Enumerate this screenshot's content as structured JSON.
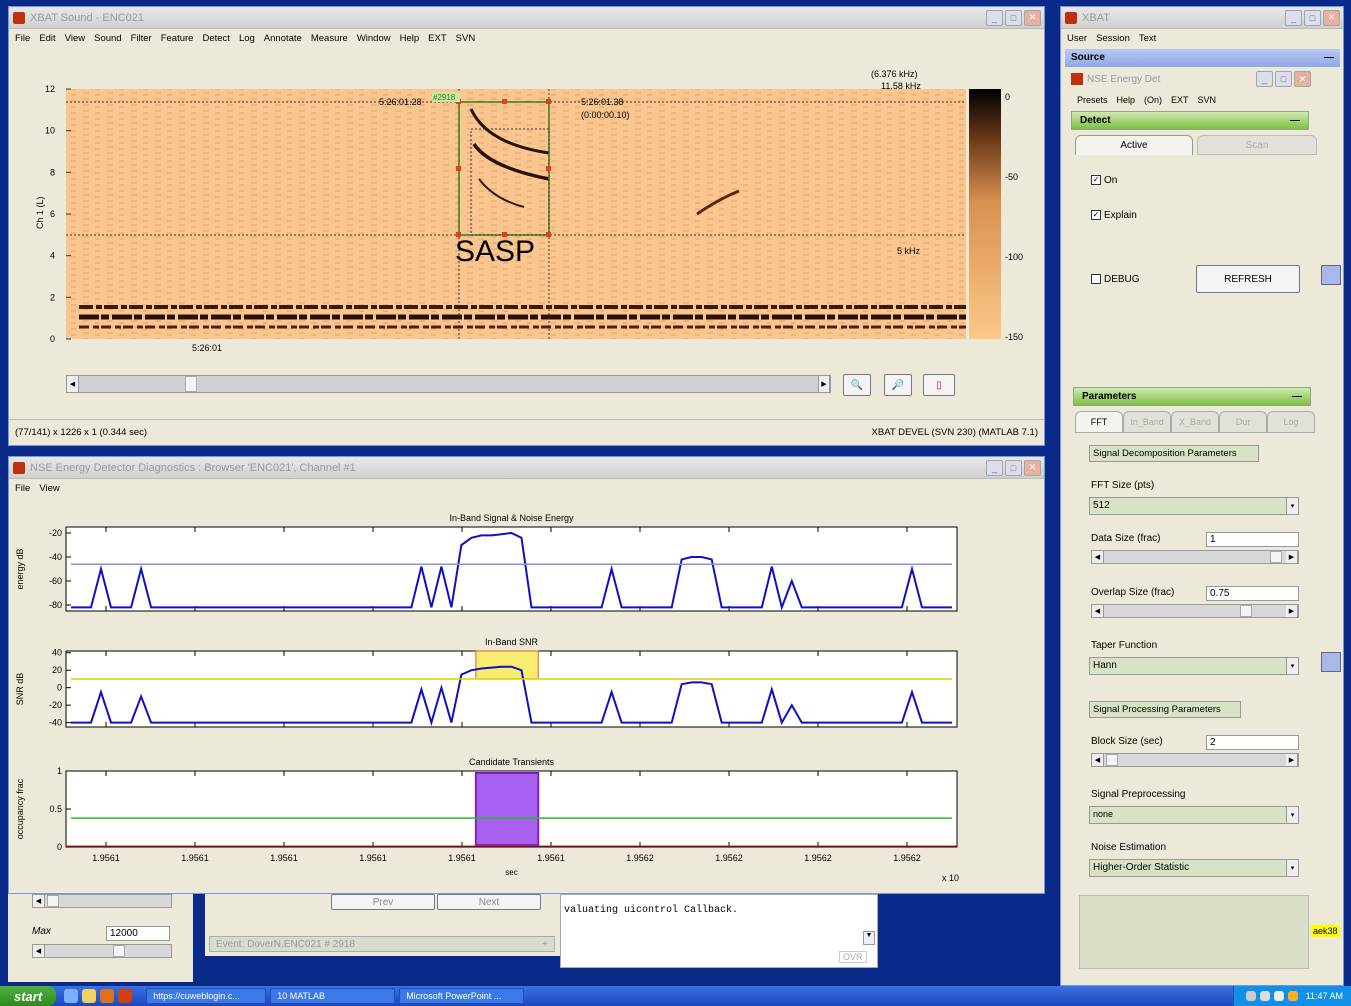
{
  "sound_window": {
    "title": "XBAT Sound  -  ENC021",
    "menu": [
      "File",
      "Edit",
      "View",
      "Sound",
      "Filter",
      "Feature",
      "Detect",
      "Log",
      "Annotate",
      "Measure",
      "Window",
      "Help",
      "EXT",
      "SVN"
    ],
    "freq_readout_top": "(6.376 kHz)",
    "freq_readout_line2": "11.58 kHz",
    "event_id": "#2918",
    "time_start": "5:26:01.28",
    "time_end": "5:26:01.38",
    "duration": "(0:00:00.10)",
    "freq_low": "5 kHz",
    "annotation": "SASP",
    "time_axis_label": "5:26:01",
    "channel_label": "Ch 1 (L)",
    "y_ticks": [
      "12",
      "10",
      "8",
      "6",
      "4",
      "2",
      "0"
    ],
    "colorbar_ticks": [
      "0",
      "-50",
      "-100",
      "-150"
    ],
    "status_left": "(77/141) x 1226 x 1  (0.344 sec)",
    "status_right": "XBAT DEVEL  (SVN 230)  (MATLAB 7.1)"
  },
  "diag_window": {
    "title": "NSE Energy Detector Diagnostics : Browser 'ENC021', Channel #1",
    "menu": [
      "File",
      "View"
    ]
  },
  "chart_data": [
    {
      "type": "line",
      "title": "In-Band Signal & Noise Energy",
      "xlabel": "sec",
      "ylabel": "energy dB",
      "ylim": [
        -85,
        -15
      ],
      "y_ticks": [
        -20,
        -40,
        -60,
        -80
      ],
      "x_tick_labels": [
        "1.9561",
        "1.9561",
        "1.9561",
        "1.9561",
        "1.9561",
        "1.9561",
        "1.9562",
        "1.9562",
        "1.9562",
        "1.9562"
      ],
      "x_multiplier": "x 10",
      "series": [
        {
          "values": [
            -82,
            -82,
            -82,
            -50,
            -82,
            -82,
            -82,
            -50,
            -82,
            -82,
            -82,
            -82,
            -82,
            -82,
            -82,
            -82,
            -82,
            -82,
            -82,
            -82,
            -82,
            -82,
            -82,
            -82,
            -82,
            -82,
            -82,
            -82,
            -82,
            -82,
            -82,
            -82,
            -82,
            -82,
            -82,
            -48,
            -82,
            -48,
            -82,
            -30,
            -24,
            -22,
            -22,
            -21,
            -20,
            -24,
            -82,
            -82,
            -82,
            -82,
            -82,
            -82,
            -82,
            -82,
            -50,
            -82,
            -82,
            -82,
            -82,
            -82,
            -82,
            -42,
            -40,
            -40,
            -42,
            -82,
            -82,
            -82,
            -82,
            -82,
            -48,
            -82,
            -60,
            -82,
            -82,
            -82,
            -82,
            -82,
            -82,
            -82,
            -82,
            -82,
            -82,
            -82,
            -50,
            -82,
            -82,
            -82,
            -82
          ]
        },
        {
          "values": [
            -46,
            -46
          ]
        }
      ]
    },
    {
      "type": "line",
      "title": "In-Band SNR",
      "xlabel": "sec",
      "ylabel": "SNR dB",
      "ylim": [
        -45,
        42
      ],
      "y_ticks": [
        40,
        20,
        0,
        -20,
        -40
      ],
      "series": [
        {
          "values": [
            -40,
            -40,
            -40,
            -5,
            -40,
            -40,
            -40,
            -10,
            -40,
            -40,
            -40,
            -40,
            -40,
            -40,
            -40,
            -40,
            -40,
            -40,
            -40,
            -40,
            -40,
            -40,
            -40,
            -40,
            -40,
            -40,
            -40,
            -40,
            -40,
            -40,
            -40,
            -40,
            -40,
            -40,
            -40,
            -2,
            -40,
            0,
            -40,
            15,
            20,
            22,
            23,
            24,
            24,
            20,
            -40,
            -40,
            -40,
            -40,
            -40,
            -40,
            -40,
            -40,
            -5,
            -40,
            -40,
            -40,
            -40,
            -40,
            -40,
            4,
            6,
            6,
            4,
            -40,
            -40,
            -40,
            -40,
            -40,
            -2,
            -40,
            -20,
            -40,
            -40,
            -40,
            -40,
            -40,
            -40,
            -40,
            -40,
            -40,
            -40,
            -40,
            -5,
            -40,
            -40,
            -40,
            -40
          ]
        },
        {
          "values": [
            10,
            10
          ]
        }
      ],
      "highlight": {
        "x_start_frac": 0.46,
        "x_end_frac": 0.53
      }
    },
    {
      "type": "line",
      "title": "Candidate Transients",
      "xlabel": "sec",
      "ylabel": "occupancy frac",
      "ylim": [
        0,
        1
      ],
      "y_ticks": [
        1,
        0.5,
        0
      ],
      "series": [
        {
          "values": [
            0.38,
            0.38
          ]
        }
      ],
      "highlight": {
        "x_start_frac": 0.46,
        "x_end_frac": 0.53
      }
    }
  ],
  "behind": {
    "max_label": "Max",
    "max_value": "12000",
    "prev": "Prev",
    "next": "Next",
    "event_text": "Event:  DoverN.ENC021 # 2918",
    "console_text": "valuating uicontrol Callback.",
    "ovr": "OVR"
  },
  "xbat_panel": {
    "title": "XBAT",
    "menu": [
      "User",
      "Session",
      "Text"
    ],
    "source_label": "Source",
    "detector_title": "NSE Energy Det",
    "det_menu": [
      "Presets",
      "Help",
      "(On)",
      "EXT",
      "SVN"
    ],
    "detect_label": "Detect",
    "tab_active": "Active",
    "tab_scan": "Scan",
    "on_label": "On",
    "explain_label": "Explain",
    "debug_label": "DEBUG",
    "refresh_label": "REFRESH",
    "parameters_label": "Parameters",
    "param_tabs": [
      "FFT",
      "In_Band",
      "X_Band",
      "Dur",
      "Log"
    ],
    "sig_decomp_label": "Signal Decomposition Parameters",
    "fft_size_label": "FFT Size (pts)",
    "fft_size_value": "512",
    "data_size_label": "Data Size (frac)",
    "data_size_value": "1",
    "overlap_label": "Overlap Size (frac)",
    "overlap_value": "0.75",
    "taper_label": "Taper Function",
    "taper_value": "Hann",
    "sig_proc_label": "Signal Processing Parameters",
    "block_size_label": "Block Size (sec)",
    "block_size_value": "2",
    "preproc_label": "Signal Preprocessing",
    "preproc_value": "none",
    "noise_label": "Noise Estimation",
    "noise_value": "Higher-Order Statistic",
    "user_badge": "aek38"
  },
  "taskbar": {
    "start": "start",
    "tasks": [
      "https://cuweblogin.c...",
      "10 MATLAB",
      "Microsoft PowerPoint ..."
    ],
    "clock": "11:47 AM"
  }
}
